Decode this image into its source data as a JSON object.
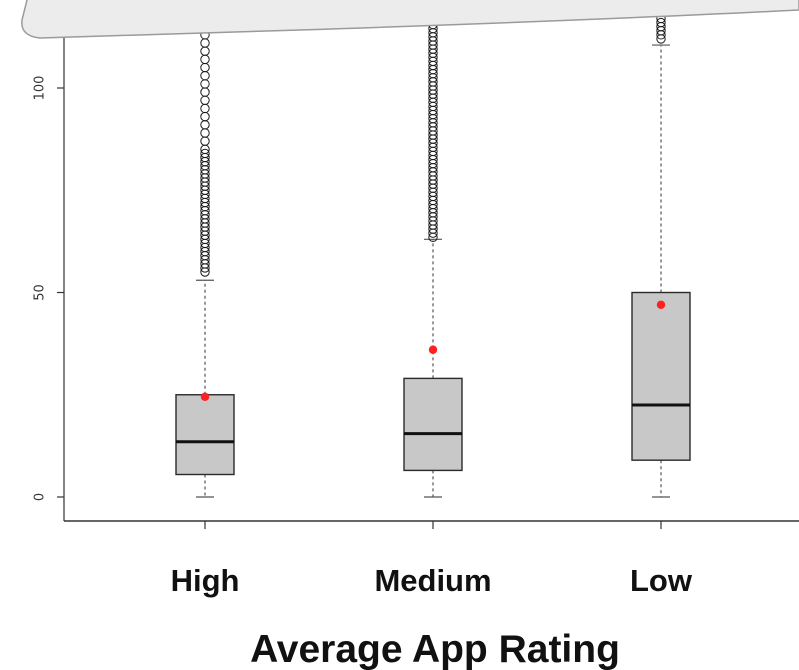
{
  "chart_data": {
    "type": "boxplot",
    "title": "",
    "xlabel": "Average App Rating",
    "ylabel": "",
    "categories": [
      "High",
      "Medium",
      "Low"
    ],
    "yticks": [
      0,
      50,
      100
    ],
    "ylim": [
      -6,
      118
    ],
    "grid": false,
    "boxes": [
      {
        "category": "High",
        "min": 0,
        "q1": 5.5,
        "median": 13.5,
        "q3": 25,
        "whisker_high": 53,
        "mean": 24.5,
        "outliers": [
          55,
          56,
          57,
          58,
          59,
          60,
          61,
          62,
          63,
          64,
          65,
          66,
          67,
          68,
          69,
          70,
          71,
          72,
          73,
          74,
          75,
          76,
          77,
          78,
          79,
          80,
          81,
          82,
          83,
          84,
          85,
          87,
          89,
          91,
          93,
          95,
          97,
          99,
          101,
          103,
          105,
          107,
          109,
          111,
          113,
          115,
          117
        ]
      },
      {
        "category": "Medium",
        "min": 0,
        "q1": 6.5,
        "median": 15.5,
        "q3": 29,
        "whisker_high": 63,
        "mean": 36,
        "outliers": [
          63.5,
          64.5,
          65.5,
          66.5,
          67.5,
          68.5,
          69.5,
          70.5,
          71.5,
          72.5,
          73.5,
          74.5,
          75.5,
          76.5,
          77.5,
          78.5,
          79.5,
          80.5,
          81.5,
          82.5,
          83.5,
          84.5,
          85.5,
          86.5,
          87.5,
          88.5,
          89.5,
          90.5,
          91.5,
          92.5,
          93.5,
          94.5,
          95.5,
          96.5,
          97.5,
          98.5,
          99.5,
          100.5,
          101.5,
          102.5,
          103.5,
          104.5,
          105.5,
          106.5,
          107.5,
          108.5,
          109.5,
          110.5,
          111.5,
          112.5,
          113.5,
          114.5,
          115.5,
          116.5,
          117.5
        ]
      },
      {
        "category": "Low",
        "min": 0,
        "q1": 9,
        "median": 22.5,
        "q3": 50,
        "whisker_high": 110.5,
        "mean": 47,
        "outliers": [
          112,
          113,
          114,
          115,
          116,
          117
        ]
      }
    ],
    "colors": {
      "box_fill": "#c8c8c8",
      "box_stroke": "#2a2a2a",
      "median": "#111111",
      "mean_point": "#ff2020",
      "outlier": "#1a1a1a",
      "axis": "#333333",
      "whisker": "#555555",
      "caption_band": "#ececec"
    }
  }
}
